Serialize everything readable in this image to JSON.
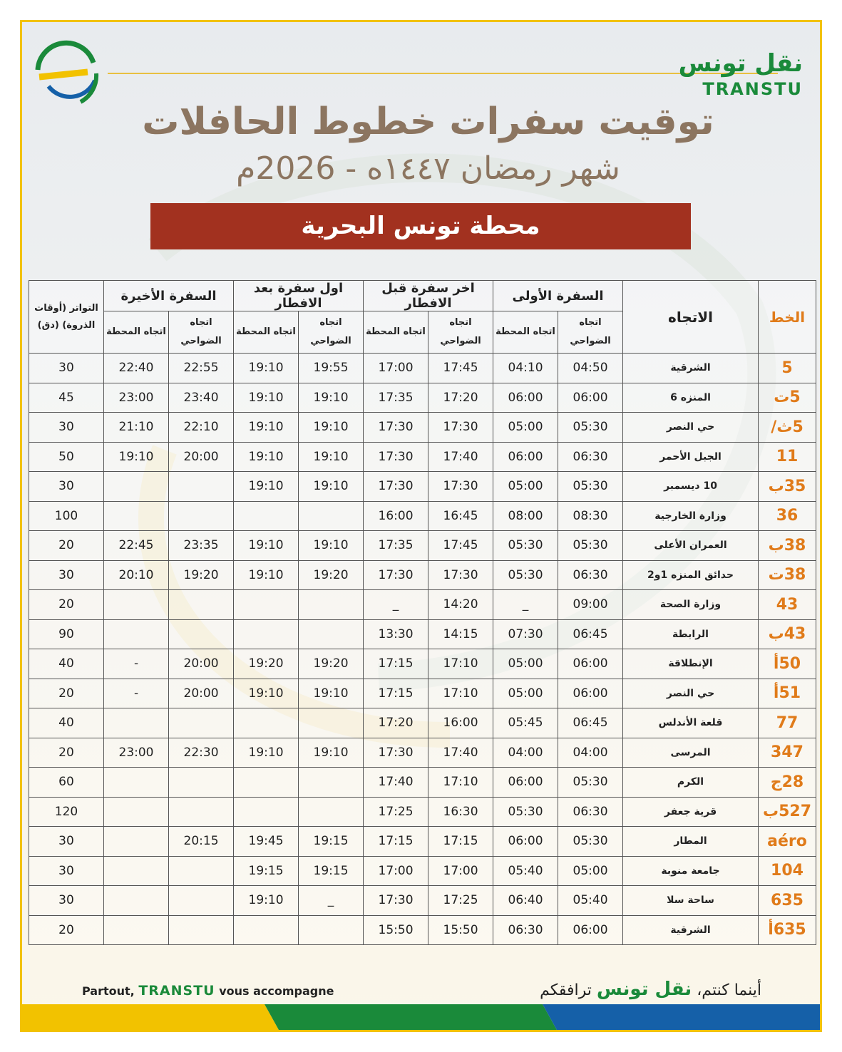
{
  "header": {
    "brand_ar": "نقل تونس",
    "brand_en": "TRANSTU",
    "title": "توقيت سفرات خطوط الحافلات",
    "subtitle": "شهر رمضان ١٤٤٧ه - 2026م",
    "station": "محطة تونس البحرية"
  },
  "table": {
    "col_line": "الخط",
    "col_direction": "الاتجاه",
    "groups": [
      "السفرة الأولى",
      "اخر سفرة قبل الافطار",
      "اول سفرة بعد الافطار",
      "السفرة الأخيرة"
    ],
    "subheaders": [
      "اتجاه الضواحي",
      "اتجاه المحطة"
    ],
    "col_frequency": "التواتر (أوقات الذروة) (دق)",
    "rows": [
      {
        "line": "5",
        "direction": "الشرقية",
        "times": [
          "04:50",
          "04:10",
          "17:45",
          "17:00",
          "19:55",
          "19:10",
          "22:55",
          "22:40"
        ],
        "frequency": 30
      },
      {
        "line": "5ت",
        "direction": "المنزه 6",
        "times": [
          "06:00",
          "06:00",
          "17:20",
          "17:35",
          "19:10",
          "19:10",
          "23:40",
          "23:00"
        ],
        "frequency": 45
      },
      {
        "line": "5ث/",
        "direction": "حي النصر",
        "times": [
          "05:30",
          "05:00",
          "17:30",
          "17:30",
          "19:10",
          "19:10",
          "22:10",
          "21:10"
        ],
        "frequency": 30
      },
      {
        "line": "11",
        "direction": "الجبل الأحمر",
        "times": [
          "06:30",
          "06:00",
          "17:40",
          "17:30",
          "19:10",
          "19:10",
          "20:00",
          "19:10"
        ],
        "frequency": 50
      },
      {
        "line": "35ب",
        "direction": "10 ديسمبر",
        "times": [
          "05:30",
          "05:00",
          "17:30",
          "17:30",
          "19:10",
          "19:10",
          null,
          null
        ],
        "frequency": 30
      },
      {
        "line": "36",
        "direction": "وزارة الخارجية",
        "times": [
          "08:30",
          "08:00",
          "16:45",
          "16:00",
          null,
          null,
          null,
          null
        ],
        "frequency": 100
      },
      {
        "line": "38ب",
        "direction": "العمران الأعلى",
        "times": [
          "05:30",
          "05:30",
          "17:45",
          "17:35",
          "19:10",
          "19:10",
          "23:35",
          "22:45"
        ],
        "frequency": 20
      },
      {
        "line": "38ت",
        "direction": "حدائق المنزه 1و2",
        "times": [
          "06:30",
          "05:30",
          "17:30",
          "17:30",
          "19:20",
          "19:10",
          "19:20",
          "20:10"
        ],
        "frequency": 30
      },
      {
        "line": "43",
        "direction": "وزارة الصحة",
        "times": [
          "09:00",
          "_",
          "14:20",
          "_",
          null,
          null,
          null,
          null
        ],
        "frequency": 20
      },
      {
        "line": "43ب",
        "direction": "الرابطة",
        "times": [
          "06:45",
          "07:30",
          "14:15",
          "13:30",
          null,
          null,
          null,
          null
        ],
        "frequency": 90
      },
      {
        "line": "50أ",
        "direction": "الإنطلاقة",
        "times": [
          "06:00",
          "05:00",
          "17:10",
          "17:15",
          "19:20",
          "19:20",
          "20:00",
          "-"
        ],
        "frequency": 40
      },
      {
        "line": "51أ",
        "direction": "حي النصر",
        "times": [
          "06:00",
          "05:00",
          "17:10",
          "17:15",
          "19:10",
          "19:10",
          "20:00",
          "-"
        ],
        "frequency": 20
      },
      {
        "line": "77",
        "direction": "قلعة الأندلس",
        "times": [
          "06:45",
          "05:45",
          "16:00",
          "17:20",
          null,
          null,
          null,
          null
        ],
        "frequency": 40
      },
      {
        "line": "347",
        "direction": "المرسى",
        "times": [
          "04:00",
          "04:00",
          "17:40",
          "17:30",
          "19:10",
          "19:10",
          "22:30",
          "23:00"
        ],
        "frequency": 20
      },
      {
        "line": "28ج",
        "direction": "الكرم",
        "times": [
          "05:30",
          "06:00",
          "17:10",
          "17:40",
          null,
          null,
          null,
          null
        ],
        "frequency": 60
      },
      {
        "line": "527ب",
        "direction": "قرية جعفر",
        "times": [
          "06:30",
          "05:30",
          "16:30",
          "17:25",
          null,
          null,
          null,
          null
        ],
        "frequency": 120
      },
      {
        "line": "aéro",
        "direction": "المطار",
        "times": [
          "05:30",
          "06:00",
          "17:15",
          "17:15",
          "19:15",
          "19:45",
          "20:15",
          null
        ],
        "frequency": 30
      },
      {
        "line": "104",
        "direction": "جامعة منوبة",
        "times": [
          "05:00",
          "05:40",
          "17:00",
          "17:00",
          "19:15",
          "19:15",
          null,
          null
        ],
        "frequency": 30
      },
      {
        "line": "635",
        "direction": "ساحة سلا",
        "times": [
          "05:40",
          "06:40",
          "17:25",
          "17:30",
          "_",
          "19:10",
          null,
          null
        ],
        "frequency": 30
      },
      {
        "line": "635أ",
        "direction": "الشرقية",
        "times": [
          "06:00",
          "06:30",
          "15:50",
          "15:50",
          null,
          null,
          null,
          null
        ],
        "frequency": 20
      }
    ]
  },
  "footer": {
    "fr_prefix": "Partout,",
    "fr_brand": "TRANSTU",
    "fr_suffix": "vous accompagne",
    "ar_prefix": "أينما كنتم،",
    "ar_brand": "نقل تونس",
    "ar_suffix": "ترافقكم"
  }
}
